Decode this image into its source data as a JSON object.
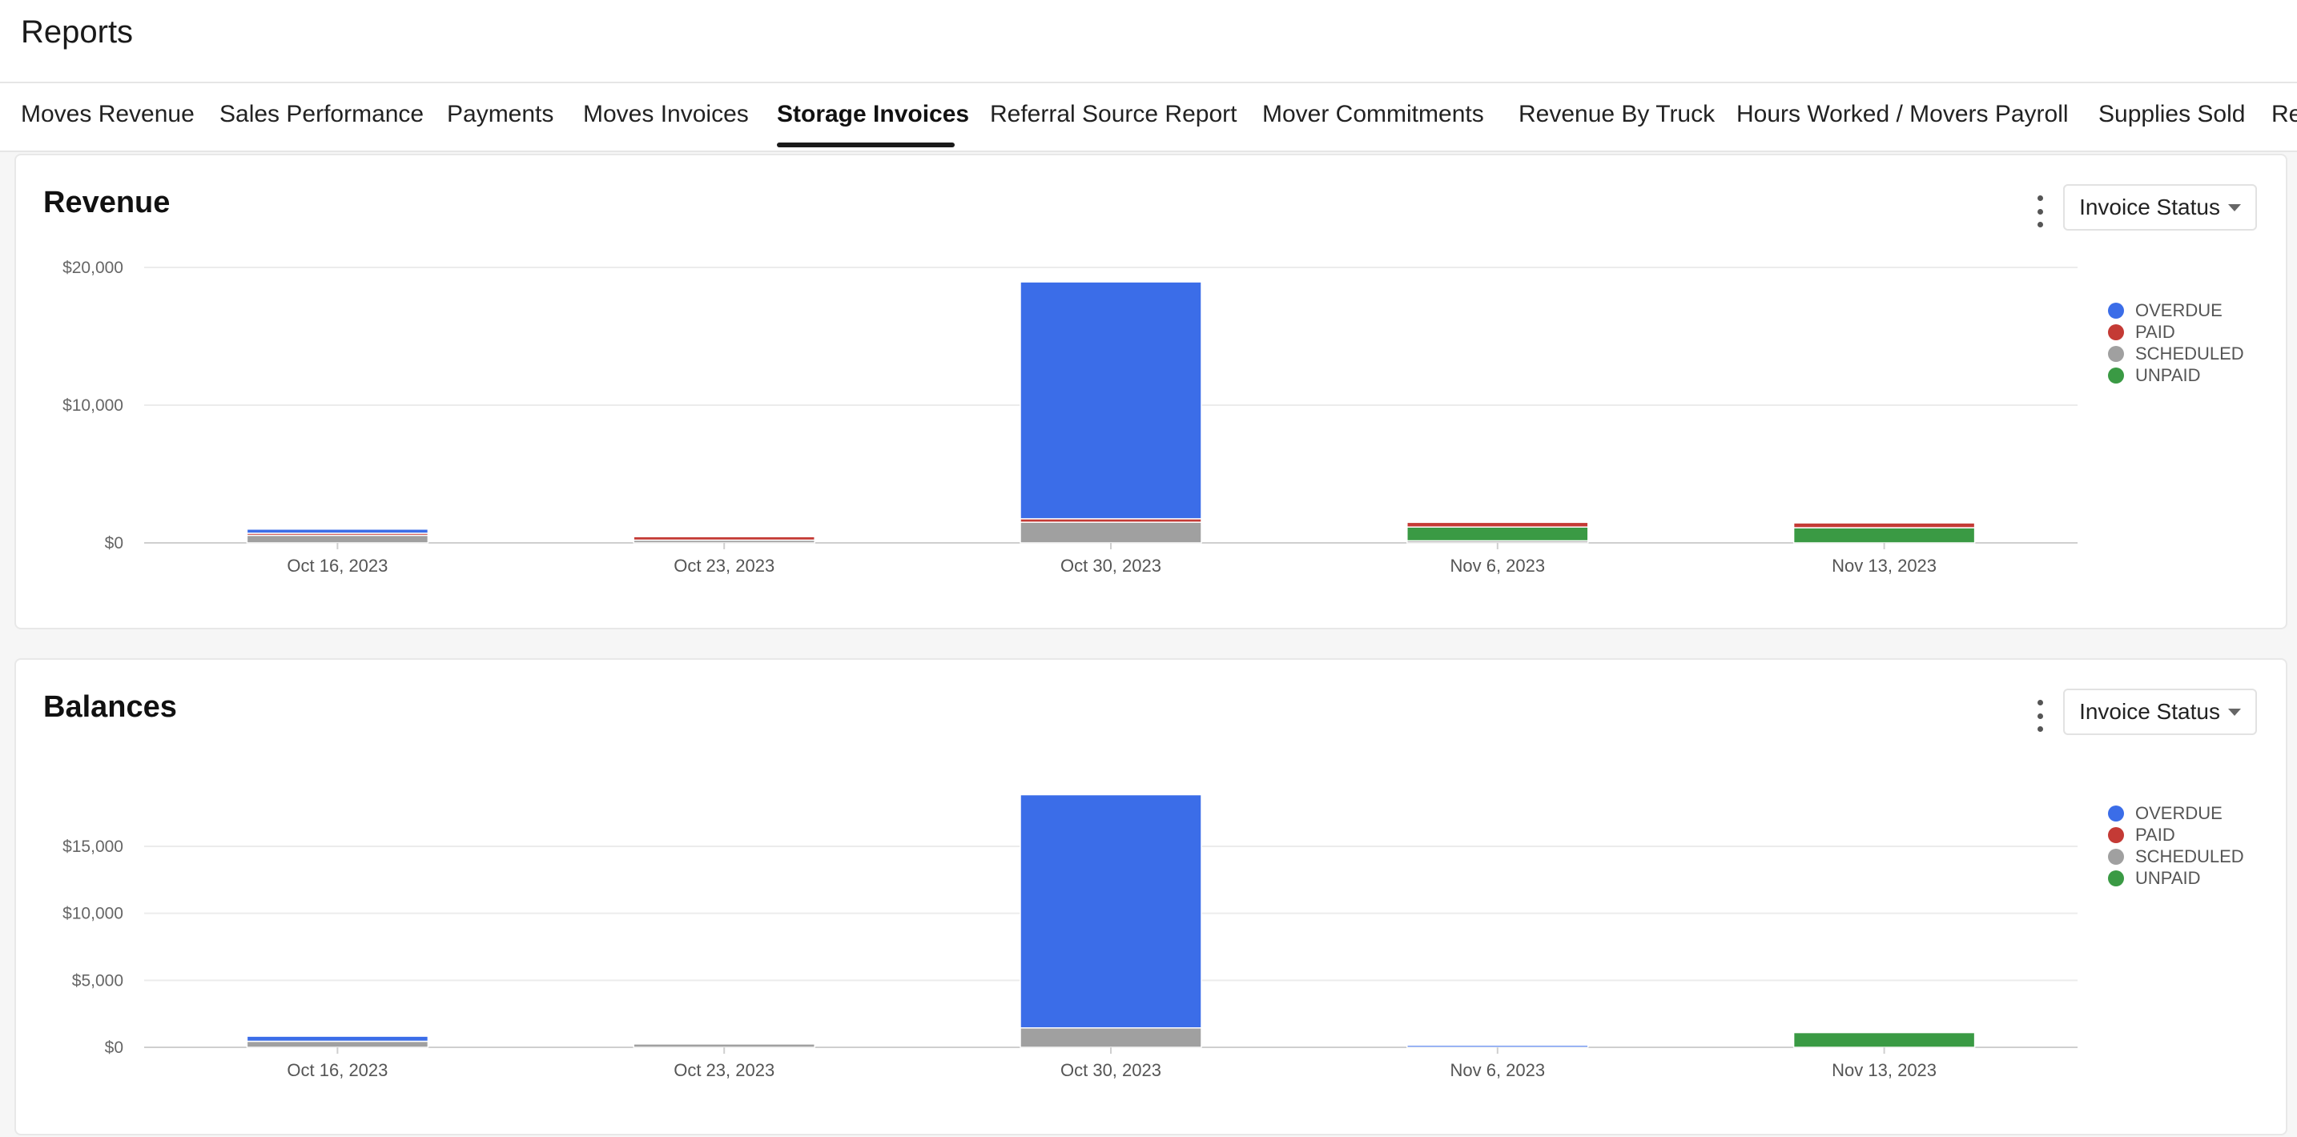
{
  "page": {
    "title": "Reports"
  },
  "tabs": [
    {
      "label": "Moves Revenue"
    },
    {
      "label": "Sales Performance"
    },
    {
      "label": "Payments"
    },
    {
      "label": "Moves Invoices"
    },
    {
      "label": "Storage Invoices",
      "active": true
    },
    {
      "label": "Referral Source Report"
    },
    {
      "label": "Mover Commitments"
    },
    {
      "label": "Revenue By Truck"
    },
    {
      "label": "Hours Worked / Movers Payroll"
    },
    {
      "label": "Supplies Sold"
    },
    {
      "label": "Re"
    }
  ],
  "colors": {
    "OVERDUE": "#3b6de8",
    "PAID": "#c43a35",
    "SCHEDULED": "#a0a0a0",
    "UNPAID": "#3a9a44"
  },
  "cards": [
    {
      "title": "Revenue",
      "filter_label": "Invoice Status",
      "menu_icon": "kebab-menu-icon"
    },
    {
      "title": "Balances",
      "filter_label": "Invoice Status",
      "menu_icon": "kebab-menu-icon"
    }
  ],
  "chart_data": [
    {
      "type": "bar",
      "stacked": true,
      "title": "Revenue",
      "categories": [
        "Oct 16, 2023",
        "Oct 23, 2023",
        "Oct 30, 2023",
        "Nov 6, 2023",
        "Nov 13, 2023"
      ],
      "yticks": [
        0,
        10000,
        20000
      ],
      "ytick_labels": [
        "$0",
        "$10,000",
        "$20,000"
      ],
      "ylim": [
        0,
        20000
      ],
      "legend_position": "right",
      "grid": true,
      "series": [
        {
          "name": "UNPAID",
          "values": [
            0,
            0,
            0,
            1000,
            1100
          ]
        },
        {
          "name": "SCHEDULED",
          "values": [
            550,
            200,
            1500,
            150,
            0
          ]
        },
        {
          "name": "PAID",
          "values": [
            150,
            250,
            250,
            350,
            350
          ]
        },
        {
          "name": "OVERDUE",
          "values": [
            300,
            0,
            17200,
            50,
            0
          ]
        }
      ]
    },
    {
      "type": "bar",
      "stacked": true,
      "title": "Balances",
      "categories": [
        "Oct 16, 2023",
        "Oct 23, 2023",
        "Oct 30, 2023",
        "Nov 6, 2023",
        "Nov 13, 2023"
      ],
      "yticks": [
        0,
        5000,
        10000,
        15000
      ],
      "ytick_labels": [
        "$0",
        "$5,000",
        "$10,000",
        "$15,000"
      ],
      "ylim": [
        0,
        19000
      ],
      "legend_position": "right",
      "grid": true,
      "series": [
        {
          "name": "UNPAID",
          "values": [
            0,
            0,
            0,
            0,
            1100
          ]
        },
        {
          "name": "SCHEDULED",
          "values": [
            450,
            250,
            1450,
            0,
            0
          ]
        },
        {
          "name": "PAID",
          "values": [
            0,
            0,
            0,
            0,
            0
          ]
        },
        {
          "name": "OVERDUE",
          "values": [
            380,
            0,
            17400,
            150,
            0
          ]
        }
      ]
    }
  ]
}
